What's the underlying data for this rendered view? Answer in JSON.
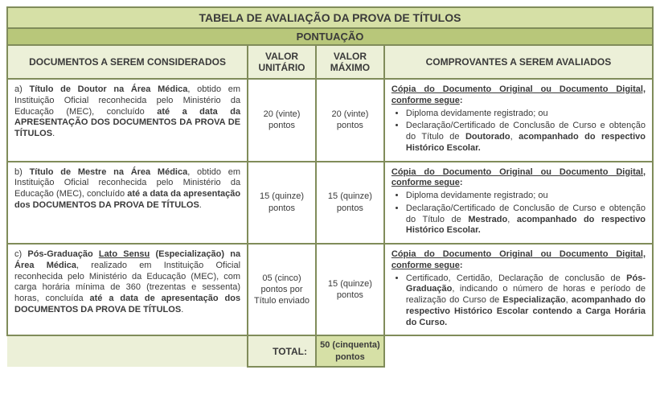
{
  "colors": {
    "border": "#808c5a",
    "title_bg": "#d6e0a6",
    "sub_bg": "#b8c77a",
    "head_bg": "#ecf0d8",
    "total_val_bg": "#d6e0a6",
    "text": "#3a3a3a",
    "head_text": "#6a6a2a"
  },
  "widths": {
    "col1": 300,
    "col2": 85,
    "col3": 85,
    "col4": 335
  },
  "title": "TABELA DE AVALIAÇÃO DA PROVA DE TÍTULOS",
  "subtitle": "PONTUAÇÃO",
  "headers": {
    "docs": "DOCUMENTOS A SEREM CONSIDERADOS",
    "unit": "VALOR UNITÁRIO",
    "max": "VALOR MÁXIMO",
    "comp": "COMPROVANTES A SEREM AVALIADOS"
  },
  "rows": [
    {
      "doc_html": "a) <span class='b'>Título de Doutor na Área Médica</span>, obtido em Instituição Oficial reconhecida pelo Ministério da Educação (MEC), concluído <span class='b'>até a data da APRESENTAÇÃO DOS DOCUMENTOS DA PROVA DE TÍTULOS</span>.",
      "unit": "20 (vinte) pontos",
      "max": "20 (vinte) pontos",
      "comp_intro": "Cópia do Documento Original ou Documento Digital, conforme segue",
      "comp_items": [
        "Diploma devidamente registrado; ou",
        "Declaração/Certificado de Conclusão de Curso e obtenção do Título de <span class='b'>Doutorado</span>, <span class='b'>acompanhado do respectivo Histórico Escolar.</span>"
      ]
    },
    {
      "doc_html": "b) <span class='b'>Título de Mestre na Área Médica</span>, obtido em Instituição Oficial reconhecida pelo Ministério da Educação (MEC), concluído <span class='b'>até a data da apresentação dos DOCUMENTOS DA PROVA DE TÍTULOS</span>.",
      "unit": "15 (quinze) pontos",
      "max": "15 (quinze) pontos",
      "comp_intro": "Cópia do Documento Original ou Documento Digital, conforme segue",
      "comp_items": [
        "Diploma devidamente registrado; ou",
        "Declaração/Certificado de Conclusão de Curso e obtenção do Título de <span class='b'>Mestrado</span>, <span class='b'>acompanhado do respectivo Histórico Escolar.</span>"
      ]
    },
    {
      "doc_html": "c) <span class='b'>Pós-Graduação <span class='u'>Lato Sensu</span> (Especialização) na Área Médica</span>, realizado em Instituição Oficial reconhecida pelo Ministério da Educação (MEC), com carga horária mínima de 360 (trezentas e sessenta) horas, concluída <span class='b'>até a data de apresentação dos DOCUMENTOS DA PROVA DE TÍTULOS</span>.",
      "unit": "05 (cinco) pontos por Título enviado",
      "max": "15 (quinze) pontos",
      "comp_intro": "Cópia do Documento Original ou Documento Digital, conforme segue",
      "comp_items": [
        "Certificado, Certidão, Declaração de conclusão de <span class='b'>Pós-Graduação</span>, indicando o número de horas e período de realização do Curso de <span class='b'>Especialização</span>, <span class='b'>acompanhado do respectivo Histórico Escolar contendo a Carga Horária do Curso.</span>"
      ]
    }
  ],
  "total": {
    "label": "TOTAL:",
    "value": "50 (cinquenta) pontos"
  }
}
